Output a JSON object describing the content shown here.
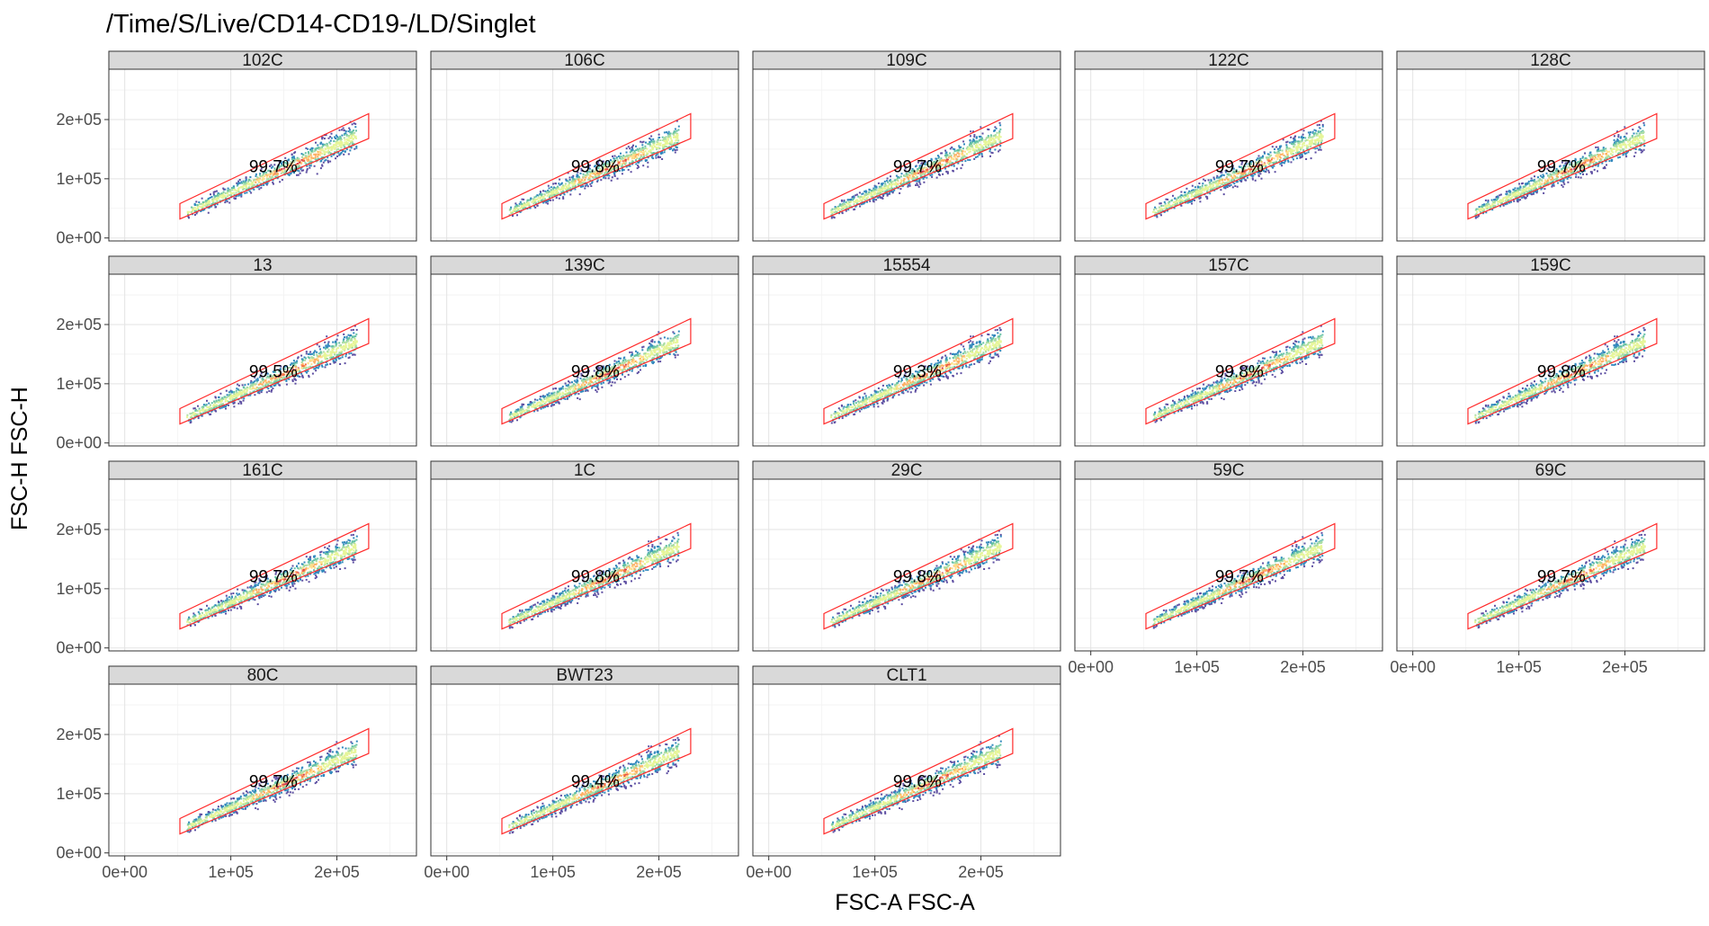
{
  "chart_data": {
    "type": "scatter",
    "title": "/Time/S/Live/CD14-CD19-/LD/Singlet",
    "xlabel": "FSC-A FSC-A",
    "ylabel": "FSC-H FSC-H",
    "xlim": [
      -15000,
      275000
    ],
    "ylim": [
      -5000,
      285000
    ],
    "x_ticks": [
      0,
      100000,
      200000
    ],
    "x_tick_labels": [
      "0e+00",
      "1e+05",
      "2e+05"
    ],
    "y_ticks": [
      0,
      100000,
      200000
    ],
    "y_tick_labels": [
      "0e+00",
      "1e+05",
      "2e+05"
    ],
    "grid": true,
    "facet_columns": 5,
    "gate_color": "#ff2a2a",
    "gate_polygon": [
      [
        52000,
        32000
      ],
      [
        52000,
        58000
      ],
      [
        230000,
        210000
      ],
      [
        230000,
        168000
      ]
    ],
    "density_colors": [
      "#5e4fa2",
      "#3288bd",
      "#66c2a5",
      "#abdda4",
      "#e6f598",
      "#fee08b",
      "#fdae61",
      "#f46d43",
      "#d53e4f"
    ],
    "panels": [
      {
        "name": "102C",
        "gate_percent": "99.7%"
      },
      {
        "name": "106C",
        "gate_percent": "99.8%"
      },
      {
        "name": "109C",
        "gate_percent": "99.7%"
      },
      {
        "name": "122C",
        "gate_percent": "99.7%"
      },
      {
        "name": "128C",
        "gate_percent": "99.7%"
      },
      {
        "name": "13",
        "gate_percent": "99.5%"
      },
      {
        "name": "139C",
        "gate_percent": "99.8%"
      },
      {
        "name": "15554",
        "gate_percent": "99.3%"
      },
      {
        "name": "157C",
        "gate_percent": "99.8%"
      },
      {
        "name": "159C",
        "gate_percent": "99.8%"
      },
      {
        "name": "161C",
        "gate_percent": "99.7%"
      },
      {
        "name": "1C",
        "gate_percent": "99.8%"
      },
      {
        "name": "29C",
        "gate_percent": "99.8%"
      },
      {
        "name": "59C",
        "gate_percent": "99.7%"
      },
      {
        "name": "69C",
        "gate_percent": "99.7%"
      },
      {
        "name": "80C",
        "gate_percent": "99.7%"
      },
      {
        "name": "BWT23",
        "gate_percent": "99.4%"
      },
      {
        "name": "CLT1",
        "gate_percent": "99.6%"
      }
    ]
  }
}
